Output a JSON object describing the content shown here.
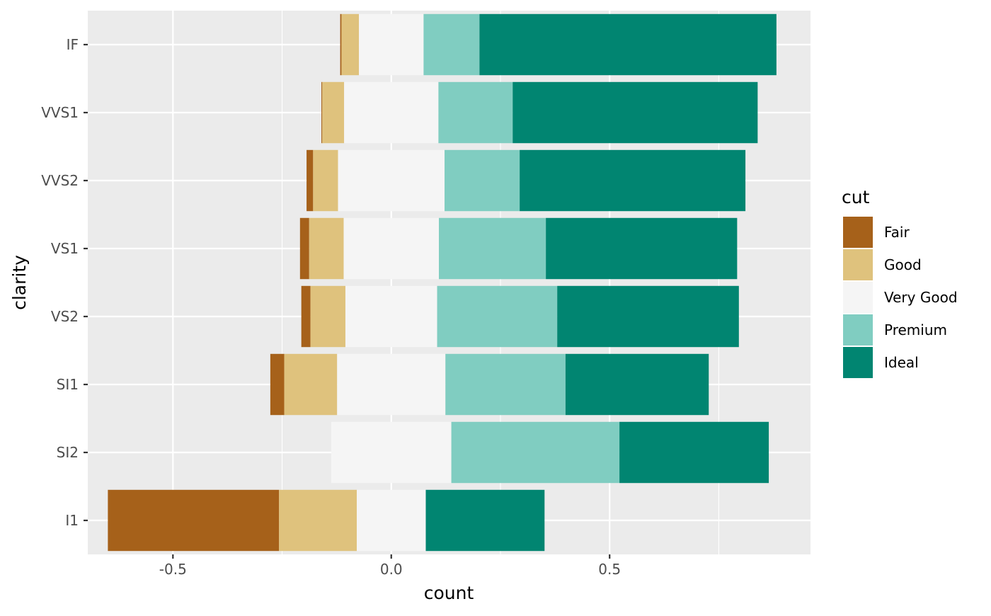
{
  "chart_data": {
    "type": "bar",
    "orientation": "horizontal",
    "stacking": "diverging",
    "xlabel": "count",
    "ylabel": "clarity",
    "xlim": [
      -0.695,
      0.96
    ],
    "x_ticks": [
      -0.5,
      0.0,
      0.5
    ],
    "x_tick_labels": [
      "-0.5",
      "0.0",
      "0.5"
    ],
    "categories": [
      "IF",
      "VVS1",
      "VVS2",
      "VS1",
      "VS2",
      "SI1",
      "SI2",
      "I1"
    ],
    "grid": true,
    "legend_title": "cut",
    "legend_position": "right",
    "series": [
      {
        "name": "Fair",
        "color": "#A6611A",
        "values": [
          0.003,
          0.002,
          0.015,
          0.021,
          0.021,
          0.032,
          0.0,
          0.392
        ]
      },
      {
        "name": "Good",
        "color": "#DFC27D",
        "values": [
          0.04,
          0.05,
          0.057,
          0.079,
          0.08,
          0.121,
          0.0,
          0.178
        ]
      },
      {
        "name": "Very Good",
        "color": "#F5F5F5",
        "values": [
          0.148,
          0.216,
          0.244,
          0.218,
          0.21,
          0.248,
          0.275,
          0.158
        ]
      },
      {
        "name": "Premium",
        "color": "#80CDC1",
        "values": [
          0.128,
          0.17,
          0.172,
          0.245,
          0.275,
          0.275,
          0.385,
          0.0
        ]
      },
      {
        "name": "Ideal",
        "color": "#018571",
        "values": [
          0.68,
          0.561,
          0.517,
          0.438,
          0.416,
          0.328,
          0.342,
          0.272
        ]
      }
    ]
  }
}
